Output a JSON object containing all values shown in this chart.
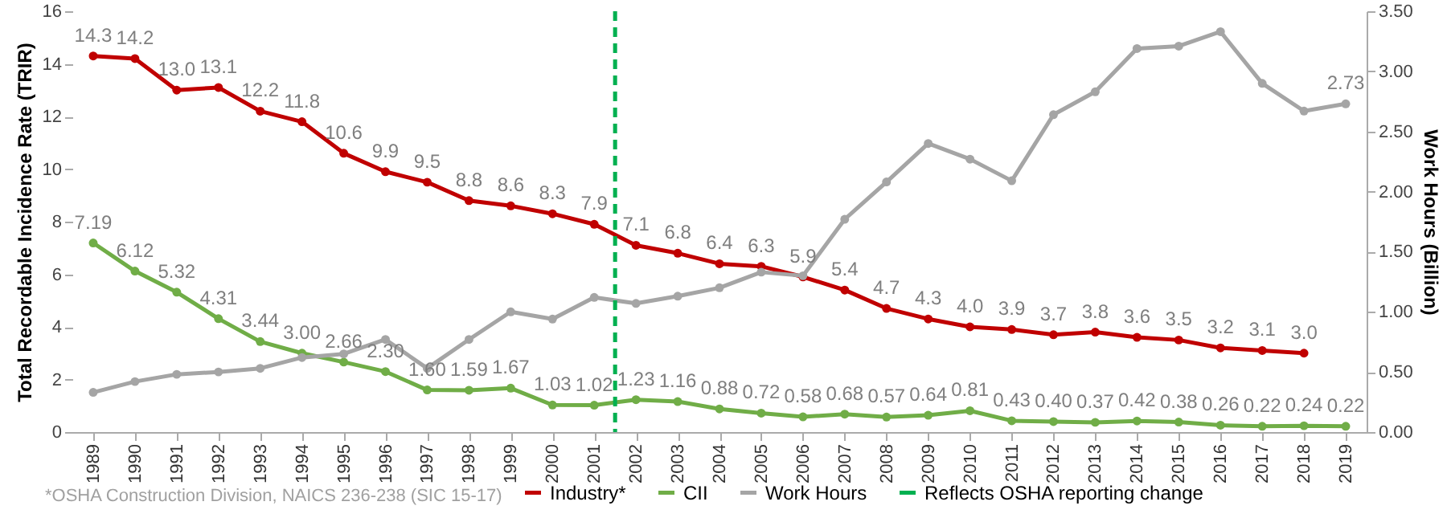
{
  "chart_data": {
    "type": "line",
    "ylabel": "Total Recordable Incidence Rate (TRIR)",
    "y2label": "Work Hours (Billion)",
    "x": [
      1989,
      1990,
      1991,
      1992,
      1993,
      1994,
      1995,
      1996,
      1997,
      1998,
      1999,
      2000,
      2001,
      2002,
      2003,
      2004,
      2005,
      2006,
      2007,
      2008,
      2009,
      2010,
      2011,
      2012,
      2013,
      2014,
      2015,
      2016,
      2017,
      2018,
      2019
    ],
    "xlim": [
      1988.5,
      2019.5
    ],
    "xticks": [
      1989,
      1990,
      1991,
      1992,
      1993,
      1994,
      1995,
      1996,
      1997,
      1998,
      1999,
      2000,
      2001,
      2002,
      2003,
      2004,
      2005,
      2006,
      2007,
      2008,
      2009,
      2010,
      2011,
      2012,
      2013,
      2014,
      2015,
      2016,
      2017,
      2018,
      2019
    ],
    "ylim": [
      0,
      16
    ],
    "yticks": [
      0,
      2,
      4,
      6,
      8,
      10,
      12,
      14,
      16
    ],
    "y2lim": [
      0,
      3.5
    ],
    "y2ticks": [
      {
        "value": 0,
        "label": "0.00"
      },
      {
        "value": 0.5,
        "label": "0.50"
      },
      {
        "value": 1,
        "label": "1.00"
      },
      {
        "value": 1.5,
        "label": "1.50"
      },
      {
        "value": 2,
        "label": "2.00"
      },
      {
        "value": 2.5,
        "label": "2.50"
      },
      {
        "value": 3,
        "label": "3.00"
      },
      {
        "value": 3.5,
        "label": "3.50"
      }
    ],
    "series": [
      {
        "name": "Industry*",
        "color": "#c00000",
        "values": [
          14.3,
          14.2,
          13.0,
          13.1,
          12.2,
          11.8,
          10.6,
          9.9,
          9.5,
          8.8,
          8.6,
          8.3,
          7.9,
          7.1,
          6.8,
          6.4,
          6.3,
          5.9,
          5.4,
          4.7,
          4.3,
          4.0,
          3.9,
          3.7,
          3.8,
          3.6,
          3.5,
          3.2,
          3.1,
          3.0,
          null
        ],
        "value_labels": [
          "14.3",
          "14.2",
          "13.0",
          "13.1",
          "12.2",
          "11.8",
          "10.6",
          "9.9",
          "9.5",
          "8.8",
          "8.6",
          "8.3",
          "7.9",
          "7.1",
          "6.8",
          "6.4",
          "6.3",
          "5.9",
          "5.4",
          "4.7",
          "4.3",
          "4.0",
          "3.9",
          "3.7",
          "3.8",
          "3.6",
          "3.5",
          "3.2",
          "3.1",
          "3.0",
          null
        ]
      },
      {
        "name": "CII",
        "color": "#70ad47",
        "values": [
          7.19,
          6.12,
          5.32,
          4.31,
          3.44,
          3.0,
          2.66,
          2.3,
          1.6,
          1.59,
          1.67,
          1.03,
          1.02,
          1.23,
          1.16,
          0.88,
          0.72,
          0.58,
          0.68,
          0.57,
          0.64,
          0.81,
          0.43,
          0.4,
          0.37,
          0.42,
          0.38,
          0.26,
          0.22,
          0.24,
          0.22
        ],
        "value_labels": [
          "7.19",
          "6.12",
          "5.32",
          "4.31",
          "3.44",
          "3.00",
          "2.66",
          "2.30",
          "1.60",
          "1.59",
          "1.67",
          "1.03",
          "1.02",
          "1.23",
          "1.16",
          "0.88",
          "0.72",
          "0.58",
          "0.68",
          "0.57",
          "0.64",
          "0.81",
          "0.43",
          "0.40",
          "0.37",
          "0.42",
          "0.38",
          "0.26",
          "0.22",
          "0.24",
          "0.22"
        ]
      },
      {
        "name": "Work Hours",
        "color": "#a5a5a5",
        "axis": "y2",
        "values": [
          0.33,
          0.42,
          0.48,
          0.5,
          0.53,
          0.62,
          0.65,
          0.77,
          0.53,
          0.77,
          1.0,
          0.94,
          1.12,
          1.07,
          1.13,
          1.2,
          1.33,
          1.3,
          1.77,
          2.08,
          2.4,
          2.27,
          2.09,
          2.64,
          2.83,
          3.19,
          3.21,
          3.33,
          2.9,
          2.67,
          2.73
        ],
        "value_labels": [
          null,
          null,
          null,
          null,
          null,
          null,
          null,
          null,
          null,
          null,
          null,
          null,
          null,
          null,
          null,
          null,
          null,
          null,
          null,
          null,
          null,
          null,
          null,
          null,
          null,
          null,
          null,
          null,
          null,
          null,
          "2.73"
        ]
      }
    ],
    "ref_lines": [
      {
        "axis": "x",
        "value": 2001.5,
        "label": "Reflects OSHA reporting change",
        "color": "#00b050",
        "line_style": "dashed"
      }
    ],
    "annotations": [
      "*OSHA Construction Division, NAICS 236-238 (SIC 15-17)"
    ],
    "marker": "circle",
    "legend": "bottom",
    "grid": false
  }
}
